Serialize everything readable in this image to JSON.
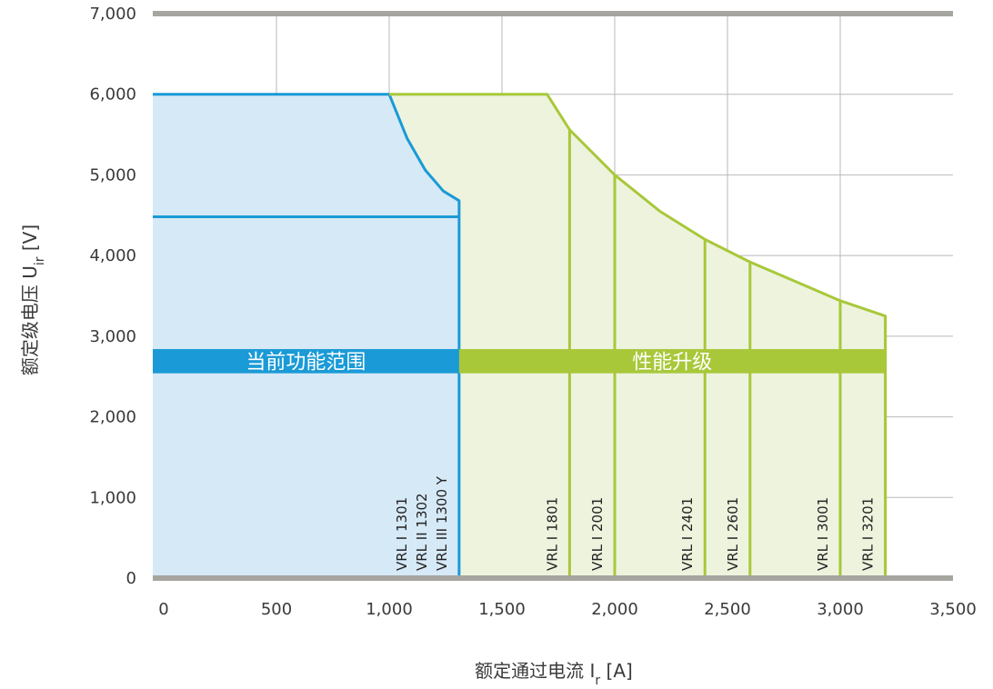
{
  "colors": {
    "current": "#1a9ad6",
    "current_fill": "#d6e9f7",
    "upgrade": "#a8c83a",
    "upgrade_fill": "#eef3de",
    "axis": "#a6a59f",
    "grid": "#b9b9b9",
    "text": "#3a3a3a"
  },
  "chart_data": {
    "type": "area",
    "xlabel": {
      "main": "额定通过电流 I",
      "sub": "r",
      "unit": " [A]"
    },
    "ylabel": {
      "main": "额定级电压 U",
      "sub": "ir",
      "unit": " [V]"
    },
    "xlim": [
      0,
      3500
    ],
    "ylim": [
      0,
      7000
    ],
    "x_ticks": [
      0,
      500,
      1000,
      1500,
      2000,
      2500,
      3000,
      3500
    ],
    "x_tick_labels": [
      "0",
      "500",
      "1,000",
      "1,500",
      "2,000",
      "2,500",
      "3,000",
      "3,500"
    ],
    "y_ticks": [
      0,
      1000,
      2000,
      3000,
      4000,
      5000,
      6000,
      7000
    ],
    "y_tick_labels": [
      "0",
      "1,000",
      "2,000",
      "3,000",
      "4,000",
      "5,000",
      "6,000",
      "7,000"
    ],
    "grid": true,
    "bands": {
      "y_range": [
        2540,
        2840
      ],
      "current": {
        "label": "当前功能范围",
        "x_range": [
          -50,
          1310
        ]
      },
      "upgrade": {
        "label": "性能升级",
        "x_range": [
          1310,
          3200
        ]
      }
    },
    "series": [
      {
        "name": "当前功能范围",
        "boundary": [
          [
            -50,
            6000
          ],
          [
            1000,
            6000
          ],
          [
            1080,
            5450
          ],
          [
            1160,
            5060
          ],
          [
            1240,
            4800
          ],
          [
            1310,
            4680
          ],
          [
            1310,
            0
          ]
        ],
        "inner_line": {
          "y": 4480,
          "x_range": [
            -50,
            1310
          ]
        }
      },
      {
        "name": "性能升级",
        "boundary": [
          [
            1000,
            6000
          ],
          [
            1700,
            6000
          ],
          [
            1800,
            5560
          ],
          [
            2000,
            5000
          ],
          [
            2200,
            4550
          ],
          [
            2400,
            4200
          ],
          [
            2600,
            3920
          ],
          [
            2800,
            3680
          ],
          [
            3000,
            3440
          ],
          [
            3200,
            3250
          ],
          [
            3200,
            0
          ]
        ]
      }
    ],
    "models": [
      {
        "x": 1310,
        "labels": [
          "VRL I 1301",
          "VRL II 1302",
          "VRL III 1300 Y"
        ],
        "series": "current"
      },
      {
        "x": 1800,
        "top": 5560,
        "labels": [
          "VRL I 1801"
        ],
        "series": "upgrade"
      },
      {
        "x": 2000,
        "top": 5000,
        "labels": [
          "VRL I 2001"
        ],
        "series": "upgrade"
      },
      {
        "x": 2400,
        "top": 4200,
        "labels": [
          "VRL I 2401"
        ],
        "series": "upgrade"
      },
      {
        "x": 2600,
        "top": 3920,
        "labels": [
          "VRL I 2601"
        ],
        "series": "upgrade"
      },
      {
        "x": 3000,
        "top": 3440,
        "labels": [
          "VRL I 3001"
        ],
        "series": "upgrade"
      },
      {
        "x": 3200,
        "top": 3250,
        "labels": [
          "VRL I 3201"
        ],
        "series": "upgrade"
      }
    ]
  }
}
